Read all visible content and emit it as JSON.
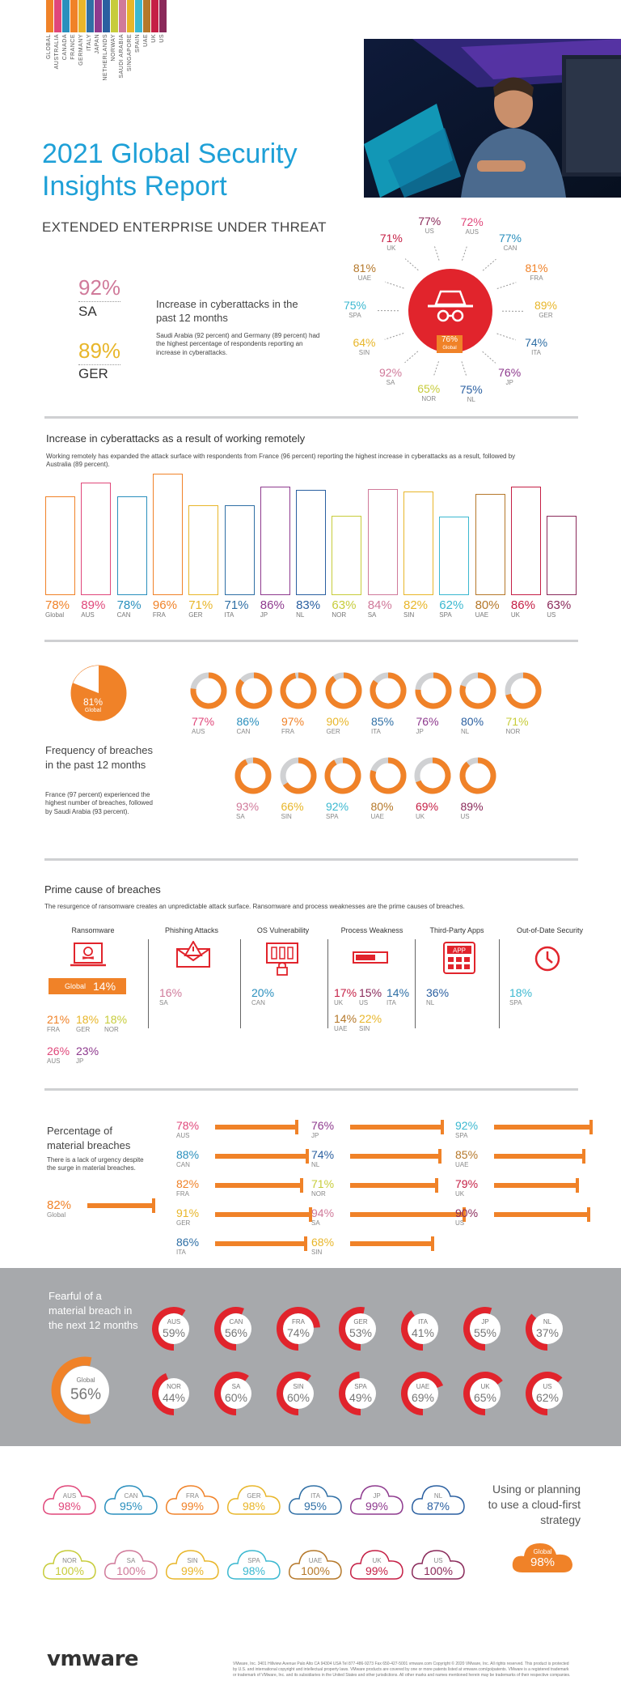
{
  "header": {
    "legend_countries": [
      "GLOBAL",
      "AUSTRALIA",
      "CANADA",
      "FRANCE",
      "GERMANY",
      "ITALY",
      "JAPAN",
      "NETHERLANDS",
      "NORWAY",
      "SAUDI ARABIA",
      "SINGAPORE",
      "SPAIN",
      "UAE",
      "UK",
      "US"
    ],
    "legend_colors": [
      "#f08228",
      "#e0477a",
      "#2a8fbd",
      "#f08228",
      "#e8b62a",
      "#2f6fa5",
      "#8e3a8e",
      "#2a5fa0",
      "#c7cc3a",
      "#d07a9a",
      "#e8b62a",
      "#3bb8d0",
      "#b5782a",
      "#c51f45",
      "#8a2a5a"
    ],
    "title_line1": "2021 Global Security",
    "title_line2": "Insights Report",
    "subtitle": "EXTENDED ENTERPRISE UNDER THREAT"
  },
  "cyberattacks": {
    "sa_value": "92%",
    "sa_label": "SA",
    "ger_value": "89%",
    "ger_label": "GER",
    "heading": "Increase in cyberattacks in the past 12 months",
    "desc": "Saudi Arabia (92 percent) and Germany (89 percent) had the highest percentage of respondents reporting an increase in cyberattacks.",
    "global_value": "76%",
    "global_label": "Global",
    "ring": [
      {
        "v": "77%",
        "c": "US",
        "color": "#8a2a5a"
      },
      {
        "v": "72%",
        "c": "AUS",
        "color": "#e0477a"
      },
      {
        "v": "77%",
        "c": "CAN",
        "color": "#2a8fbd"
      },
      {
        "v": "81%",
        "c": "FRA",
        "color": "#f08228"
      },
      {
        "v": "89%",
        "c": "GER",
        "color": "#e8b62a"
      },
      {
        "v": "74%",
        "c": "ITA",
        "color": "#2f6fa5"
      },
      {
        "v": "76%",
        "c": "JP",
        "color": "#8e3a8e"
      },
      {
        "v": "75%",
        "c": "NL",
        "color": "#2a5fa0"
      },
      {
        "v": "65%",
        "c": "NOR",
        "color": "#c7cc3a"
      },
      {
        "v": "92%",
        "c": "SA",
        "color": "#d07a9a"
      },
      {
        "v": "64%",
        "c": "SIN",
        "color": "#e8b62a"
      },
      {
        "v": "75%",
        "c": "SPA",
        "color": "#3bb8d0"
      },
      {
        "v": "81%",
        "c": "UAE",
        "color": "#b5782a"
      },
      {
        "v": "71%",
        "c": "UK",
        "color": "#c51f45"
      }
    ]
  },
  "remote": {
    "heading": "Increase in cyberattacks as a result of working remotely",
    "desc": "Working remotely has expanded the attack surface with respondents from France (96 percent) reporting the highest increase in cyberattacks as a result, followed by Australia (89 percent).",
    "chart_data": {
      "type": "bar",
      "categories": [
        "Global",
        "AUS",
        "CAN",
        "FRA",
        "GER",
        "ITA",
        "JP",
        "NL",
        "NOR",
        "SA",
        "SIN",
        "SPA",
        "UAE",
        "UK",
        "US"
      ],
      "values": [
        78,
        89,
        78,
        96,
        71,
        71,
        86,
        83,
        63,
        84,
        82,
        62,
        80,
        86,
        63
      ],
      "labels": [
        "78%",
        "89%",
        "78%",
        "96%",
        "71%",
        "71%",
        "86%",
        "83%",
        "63%",
        "84%",
        "82%",
        "62%",
        "80%",
        "86%",
        "63%"
      ],
      "colors": [
        "#f08228",
        "#e0477a",
        "#2a8fbd",
        "#f08228",
        "#e8b62a",
        "#2f6fa5",
        "#8e3a8e",
        "#2a5fa0",
        "#c7cc3a",
        "#d07a9a",
        "#e8b62a",
        "#3bb8d0",
        "#b5782a",
        "#c51f45",
        "#8a2a5a"
      ]
    }
  },
  "breaches": {
    "global_value": "81%",
    "global_label": "Global",
    "global_fraction": 0.81,
    "heading": "Frequency of breaches in the past 12 months",
    "desc": "France (97 percent) experienced the highest number of breaches, followed by Saudi Arabia (93 percent).",
    "row1": [
      {
        "v": "77%",
        "c": "AUS",
        "f": 0.77,
        "color": "#e0477a"
      },
      {
        "v": "86%",
        "c": "CAN",
        "f": 0.86,
        "color": "#2a8fbd"
      },
      {
        "v": "97%",
        "c": "FRA",
        "f": 0.97,
        "color": "#f08228"
      },
      {
        "v": "90%",
        "c": "GER",
        "f": 0.9,
        "color": "#e8b62a"
      },
      {
        "v": "85%",
        "c": "ITA",
        "f": 0.85,
        "color": "#2f6fa5"
      },
      {
        "v": "76%",
        "c": "JP",
        "f": 0.76,
        "color": "#8e3a8e"
      },
      {
        "v": "80%",
        "c": "NL",
        "f": 0.8,
        "color": "#2a5fa0"
      },
      {
        "v": "71%",
        "c": "NOR",
        "f": 0.71,
        "color": "#c7cc3a"
      }
    ],
    "row2": [
      {
        "v": "93%",
        "c": "SA",
        "f": 0.93,
        "color": "#d07a9a"
      },
      {
        "v": "66%",
        "c": "SIN",
        "f": 0.66,
        "color": "#e8b62a"
      },
      {
        "v": "92%",
        "c": "SPA",
        "f": 0.92,
        "color": "#3bb8d0"
      },
      {
        "v": "80%",
        "c": "UAE",
        "f": 0.8,
        "color": "#b5782a"
      },
      {
        "v": "69%",
        "c": "UK",
        "f": 0.69,
        "color": "#c51f45"
      },
      {
        "v": "89%",
        "c": "US",
        "f": 0.89,
        "color": "#8a2a5a"
      }
    ]
  },
  "causes": {
    "heading": "Prime cause of breaches",
    "desc": "The resurgence of ransomware creates an unpredictable attack surface.  Ransomware and process weaknesses are the prime causes of breaches.",
    "columns": [
      "Ransomware",
      "Phishing Attacks",
      "OS Vulnerability",
      "Process Weakness",
      "Third-Party Apps",
      "Out-of-Date Security"
    ],
    "ransomware_global": "Global",
    "ransomware_global_value": "14%",
    "ransomware_items": [
      {
        "v": "21%",
        "c": "FRA",
        "color": "#f08228"
      },
      {
        "v": "18%",
        "c": "GER",
        "color": "#e8b62a"
      },
      {
        "v": "18%",
        "c": "NOR",
        "color": "#c7cc3a"
      },
      {
        "v": "26%",
        "c": "AUS",
        "color": "#e0477a"
      },
      {
        "v": "23%",
        "c": "JP",
        "color": "#8e3a8e"
      }
    ],
    "phishing": {
      "v": "16%",
      "c": "SA",
      "color": "#d07a9a"
    },
    "os": {
      "v": "20%",
      "c": "CAN",
      "color": "#2a8fbd"
    },
    "process_items": [
      {
        "v": "17%",
        "c": "UK",
        "color": "#c51f45"
      },
      {
        "v": "15%",
        "c": "US",
        "color": "#8a2a5a"
      },
      {
        "v": "14%",
        "c": "ITA",
        "color": "#2f6fa5"
      },
      {
        "v": "14%",
        "c": "UAE",
        "color": "#b5782a"
      },
      {
        "v": "22%",
        "c": "SIN",
        "color": "#e8b62a"
      }
    ],
    "third_party": {
      "v": "36%",
      "c": "NL",
      "color": "#2a5fa0"
    },
    "outdated": {
      "v": "18%",
      "c": "SPA",
      "color": "#3bb8d0"
    },
    "app_icon_text": "APP"
  },
  "material": {
    "heading": "Percentage of material breaches",
    "desc": "There is a lack of urgency despite the surge in material breaches.",
    "global_value": "82%",
    "global_label": "Global",
    "global_fraction": 0.82,
    "items": [
      {
        "v": "78%",
        "c": "AUS",
        "f": 0.78,
        "color": "#e0477a"
      },
      {
        "v": "88%",
        "c": "CAN",
        "f": 0.88,
        "color": "#2a8fbd"
      },
      {
        "v": "82%",
        "c": "FRA",
        "f": 0.82,
        "color": "#f08228"
      },
      {
        "v": "91%",
        "c": "GER",
        "f": 0.91,
        "color": "#e8b62a"
      },
      {
        "v": "86%",
        "c": "ITA",
        "f": 0.86,
        "color": "#2f6fa5"
      },
      {
        "v": "76%",
        "c": "JP",
        "f": 0.76,
        "color": "#8e3a8e"
      },
      {
        "v": "74%",
        "c": "NL",
        "f": 0.74,
        "color": "#2a5fa0"
      },
      {
        "v": "71%",
        "c": "NOR",
        "f": 0.71,
        "color": "#c7cc3a"
      },
      {
        "v": "94%",
        "c": "SA",
        "f": 0.94,
        "color": "#d07a9a"
      },
      {
        "v": "68%",
        "c": "SIN",
        "f": 0.68,
        "color": "#e8b62a"
      },
      {
        "v": "92%",
        "c": "SPA",
        "f": 0.92,
        "color": "#3bb8d0"
      },
      {
        "v": "85%",
        "c": "UAE",
        "f": 0.85,
        "color": "#b5782a"
      },
      {
        "v": "79%",
        "c": "UK",
        "f": 0.79,
        "color": "#c51f45"
      },
      {
        "v": "90%",
        "c": "US",
        "f": 0.9,
        "color": "#8a2a5a"
      }
    ]
  },
  "fearful": {
    "heading": "Fearful of a material breach in the next 12 months",
    "global_value": "56%",
    "global_label": "Global",
    "global_fraction": 0.56,
    "items": [
      {
        "v": "59%",
        "c": "AUS",
        "f": 0.59
      },
      {
        "v": "56%",
        "c": "CAN",
        "f": 0.56
      },
      {
        "v": "74%",
        "c": "FRA",
        "f": 0.74
      },
      {
        "v": "53%",
        "c": "GER",
        "f": 0.53
      },
      {
        "v": "41%",
        "c": "ITA",
        "f": 0.41
      },
      {
        "v": "55%",
        "c": "JP",
        "f": 0.55
      },
      {
        "v": "37%",
        "c": "NL",
        "f": 0.37
      },
      {
        "v": "44%",
        "c": "NOR",
        "f": 0.44
      },
      {
        "v": "60%",
        "c": "SA",
        "f": 0.6
      },
      {
        "v": "60%",
        "c": "SIN",
        "f": 0.6
      },
      {
        "v": "49%",
        "c": "SPA",
        "f": 0.49
      },
      {
        "v": "69%",
        "c": "UAE",
        "f": 0.69
      },
      {
        "v": "65%",
        "c": "UK",
        "f": 0.65
      },
      {
        "v": "62%",
        "c": "US",
        "f": 0.62
      }
    ]
  },
  "cloud": {
    "heading": "Using or planning to use a cloud-first strategy",
    "global_value": "98%",
    "global_label": "Global",
    "items": [
      {
        "v": "98%",
        "c": "AUS",
        "color": "#e0477a"
      },
      {
        "v": "95%",
        "c": "CAN",
        "color": "#2a8fbd"
      },
      {
        "v": "99%",
        "c": "FRA",
        "color": "#f08228"
      },
      {
        "v": "98%",
        "c": "GER",
        "color": "#e8b62a"
      },
      {
        "v": "95%",
        "c": "ITA",
        "color": "#2f6fa5"
      },
      {
        "v": "99%",
        "c": "JP",
        "color": "#8e3a8e"
      },
      {
        "v": "87%",
        "c": "NL",
        "color": "#2a5fa0"
      },
      {
        "v": "100%",
        "c": "NOR",
        "color": "#c7cc3a"
      },
      {
        "v": "100%",
        "c": "SA",
        "color": "#d07a9a"
      },
      {
        "v": "99%",
        "c": "SIN",
        "color": "#e8b62a"
      },
      {
        "v": "98%",
        "c": "SPA",
        "color": "#3bb8d0"
      },
      {
        "v": "100%",
        "c": "UAE",
        "color": "#b5782a"
      },
      {
        "v": "99%",
        "c": "UK",
        "color": "#c51f45"
      },
      {
        "v": "100%",
        "c": "US",
        "color": "#8a2a5a"
      }
    ]
  },
  "footer": {
    "logo": "vmware",
    "legal": "VMware, Inc. 3401 Hillview Avenue Palo Alto CA 94304 USA Tel 877-486-9273 Fax 650-427-5001 vmware.com Copyright © 2020 VMware, Inc. All rights reserved. This product is protected by U.S. and international copyright and intellectual property laws. VMware products are covered by one or more patents listed at vmware.com/go/patents. VMware is a registered trademark or trademark of VMware, Inc. and its subsidiaries in the United States and other jurisdictions. All other marks and names mentioned herein may be trademarks of their respective companies."
  },
  "colors": {
    "orange": "#f08228",
    "blue": "#1ea0d7",
    "red": "#e1242c",
    "gray": "#a7a9ac"
  }
}
